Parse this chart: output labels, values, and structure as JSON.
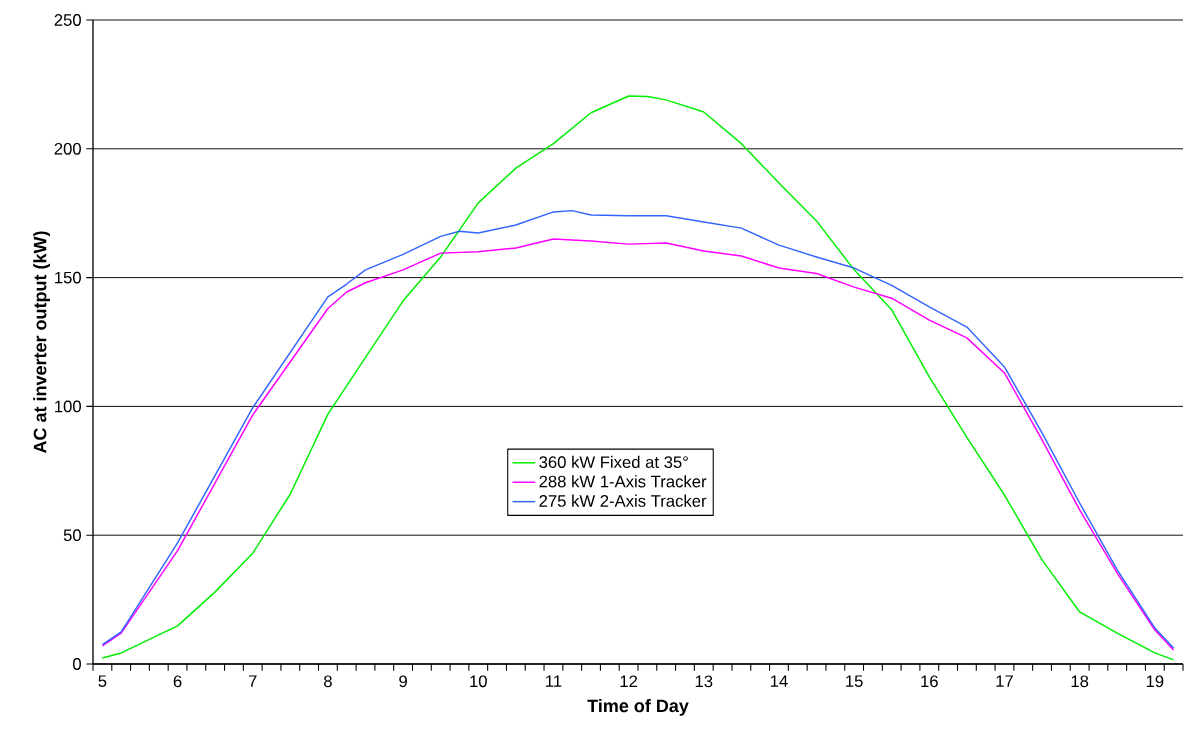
{
  "chart_data": {
    "type": "line",
    "xlabel": "Time of Day",
    "ylabel": "AC at inverter output (kW)",
    "xlim": [
      4.875,
      19.375
    ],
    "ylim": [
      0,
      250
    ],
    "xticks": [
      5,
      6,
      7,
      8,
      9,
      10,
      11,
      12,
      13,
      14,
      15,
      16,
      17,
      18,
      19
    ],
    "yticks": [
      0,
      50,
      100,
      150,
      200,
      250
    ],
    "grid": "y",
    "legend": "center",
    "marker": "none",
    "line_style": "solid",
    "series": [
      {
        "name": "360 kW Fixed at 35°",
        "color": "#00ee00",
        "x": [
          5,
          5.25,
          6,
          6.5,
          7,
          7.5,
          8,
          8.5,
          9,
          9.5,
          10,
          10.5,
          11,
          11.5,
          12,
          12.25,
          12.5,
          13,
          13.5,
          14,
          14.5,
          15,
          15.5,
          16,
          16.5,
          17,
          17.5,
          18,
          18.5,
          19,
          19.25
        ],
        "values": [
          2.3,
          4.3,
          14.8,
          28,
          43,
          66,
          97,
          119,
          141,
          158,
          179,
          192.5,
          202,
          214,
          220.5,
          220.3,
          219,
          214.3,
          202,
          186.7,
          172,
          153,
          137.5,
          111.5,
          88,
          65.6,
          40.4,
          20.2,
          12,
          4.3,
          1.6
        ]
      },
      {
        "name": "288 kW 1-Axis Tracker",
        "color": "#ff00ff",
        "x": [
          5,
          5.25,
          6,
          7,
          8,
          8.25,
          8.5,
          9,
          9.5,
          10,
          10.5,
          11,
          11.5,
          12,
          12.5,
          13,
          13.5,
          14,
          14.5,
          15,
          15.5,
          16,
          16.5,
          17,
          17.5,
          18,
          18.5,
          19,
          19.25
        ],
        "values": [
          7,
          12,
          44,
          96.7,
          138,
          144.4,
          148,
          153,
          159.5,
          160,
          161.5,
          165,
          164.2,
          163,
          163.4,
          160.3,
          158.4,
          153.7,
          151.6,
          146.3,
          142,
          133.5,
          126.6,
          113,
          87,
          59.8,
          35.3,
          13.2,
          5.4
        ]
      },
      {
        "name": "275 kW 2-Axis Tracker",
        "color": "#3366ff",
        "x": [
          5,
          5.25,
          6,
          7,
          8,
          8.25,
          8.5,
          9,
          9.5,
          9.75,
          10,
          10.5,
          11,
          11.25,
          11.5,
          12,
          12.5,
          13,
          13.5,
          14,
          14.5,
          15,
          15.5,
          16,
          16.5,
          17,
          17.5,
          18,
          18.5,
          19,
          19.25
        ],
        "values": [
          7.5,
          12.5,
          47,
          99.5,
          142.5,
          147.5,
          153,
          159,
          166,
          168,
          167.3,
          170.4,
          175.5,
          176,
          174.3,
          174,
          174,
          171.6,
          169.2,
          162.6,
          158,
          153.7,
          147,
          138.6,
          130.8,
          115.3,
          89.7,
          62.5,
          36.5,
          14,
          6.2
        ]
      }
    ]
  }
}
